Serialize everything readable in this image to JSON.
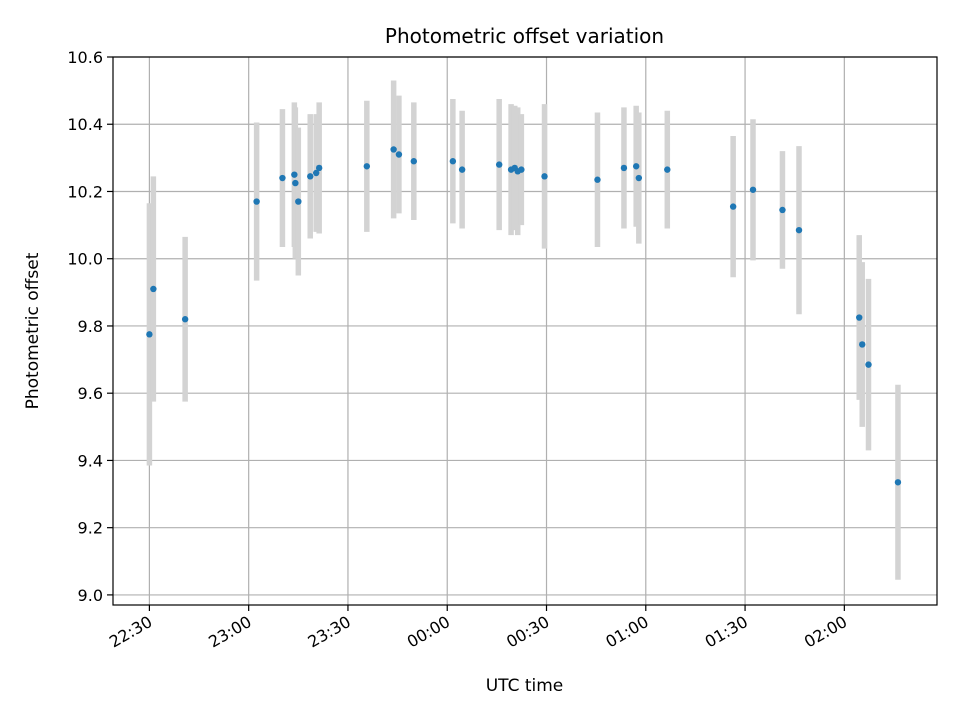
{
  "chart_data": {
    "type": "scatter",
    "title": "Photometric offset variation",
    "xlabel": "UTC time",
    "ylabel": "Photometric offset",
    "x_unit": "UTC time (HH:MM)",
    "xlim": [
      "22:19",
      "02:28"
    ],
    "ylim": [
      8.97,
      10.6
    ],
    "grid": true,
    "x_ticks": [
      "22:30",
      "23:00",
      "23:30",
      "00:00",
      "00:30",
      "01:00",
      "01:30",
      "02:00"
    ],
    "y_ticks": [
      "9.0",
      "9.2",
      "9.4",
      "9.6",
      "9.8",
      "10.0",
      "10.2",
      "10.4",
      "10.6"
    ],
    "colors": {
      "marker": "#1f77b4",
      "errorbar": "#d3d3d3",
      "grid": "#b0b0b0"
    },
    "points": [
      {
        "x": "22:30:00",
        "y": 9.775,
        "err": 0.39
      },
      {
        "x": "22:31:12",
        "y": 9.91,
        "err": 0.335
      },
      {
        "x": "22:40:48",
        "y": 9.82,
        "err": 0.245
      },
      {
        "x": "23:02:24",
        "y": 10.17,
        "err": 0.235
      },
      {
        "x": "23:10:12",
        "y": 10.24,
        "err": 0.205
      },
      {
        "x": "23:13:48",
        "y": 10.25,
        "err": 0.215
      },
      {
        "x": "23:14:06",
        "y": 10.225,
        "err": 0.225
      },
      {
        "x": "23:15:00",
        "y": 10.17,
        "err": 0.22
      },
      {
        "x": "23:18:36",
        "y": 10.245,
        "err": 0.185
      },
      {
        "x": "23:20:24",
        "y": 10.255,
        "err": 0.175
      },
      {
        "x": "23:21:18",
        "y": 10.27,
        "err": 0.195
      },
      {
        "x": "23:35:42",
        "y": 10.275,
        "err": 0.195
      },
      {
        "x": "23:43:48",
        "y": 10.325,
        "err": 0.205
      },
      {
        "x": "23:45:24",
        "y": 10.31,
        "err": 0.175
      },
      {
        "x": "23:49:54",
        "y": 10.29,
        "err": 0.175
      },
      {
        "x": "00:01:42",
        "y": 10.29,
        "err": 0.185
      },
      {
        "x": "00:04:30",
        "y": 10.265,
        "err": 0.175
      },
      {
        "x": "00:15:42",
        "y": 10.28,
        "err": 0.195
      },
      {
        "x": "00:19:18",
        "y": 10.265,
        "err": 0.195
      },
      {
        "x": "00:20:24",
        "y": 10.27,
        "err": 0.185
      },
      {
        "x": "00:21:18",
        "y": 10.26,
        "err": 0.19
      },
      {
        "x": "00:22:24",
        "y": 10.265,
        "err": 0.165
      },
      {
        "x": "00:29:24",
        "y": 10.245,
        "err": 0.215
      },
      {
        "x": "00:45:24",
        "y": 10.235,
        "err": 0.2
      },
      {
        "x": "00:53:24",
        "y": 10.27,
        "err": 0.18
      },
      {
        "x": "00:57:06",
        "y": 10.275,
        "err": 0.18
      },
      {
        "x": "00:57:54",
        "y": 10.24,
        "err": 0.195
      },
      {
        "x": "01:06:30",
        "y": 10.265,
        "err": 0.175
      },
      {
        "x": "01:26:24",
        "y": 10.155,
        "err": 0.21
      },
      {
        "x": "01:32:24",
        "y": 10.205,
        "err": 0.21
      },
      {
        "x": "01:41:18",
        "y": 10.145,
        "err": 0.175
      },
      {
        "x": "01:46:18",
        "y": 10.085,
        "err": 0.25
      },
      {
        "x": "02:04:30",
        "y": 9.825,
        "err": 0.245
      },
      {
        "x": "02:05:24",
        "y": 9.745,
        "err": 0.245
      },
      {
        "x": "02:07:18",
        "y": 9.685,
        "err": 0.255
      },
      {
        "x": "02:16:12",
        "y": 9.335,
        "err": 0.29
      }
    ]
  }
}
